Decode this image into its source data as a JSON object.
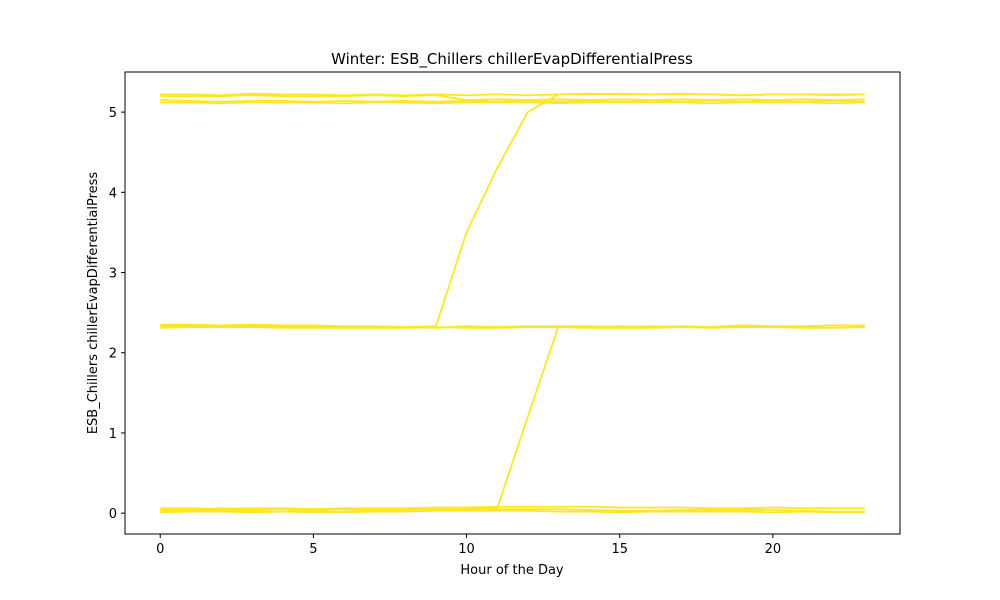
{
  "chart_data": {
    "type": "line",
    "title": "Winter: ESB_Chillers chillerEvapDifferentialPress",
    "xlabel": "Hour of the Day",
    "ylabel": "ESB_Chillers chillerEvapDifferentialPress",
    "xlim": [
      -1.15,
      24.15
    ],
    "ylim": [
      -0.26,
      5.5
    ],
    "xticks": [
      0,
      5,
      10,
      15,
      20
    ],
    "yticks": [
      0,
      1,
      2,
      3,
      4,
      5
    ],
    "grid": false,
    "line_color": "#fde725",
    "series": [
      {
        "x": [
          0,
          1,
          2,
          3,
          4,
          5,
          6,
          7,
          8,
          9,
          10,
          11,
          12,
          13,
          14,
          15,
          16,
          17,
          18,
          19,
          20,
          21,
          22,
          23
        ],
        "y": [
          5.22,
          5.22,
          5.21,
          5.23,
          5.22,
          5.22,
          5.21,
          5.22,
          5.21,
          5.22,
          5.21,
          5.22,
          5.21,
          5.22,
          5.23,
          5.22,
          5.22,
          5.23,
          5.22,
          5.21,
          5.22,
          5.22,
          5.22,
          5.22
        ]
      },
      {
        "x": [
          0,
          1,
          2,
          3,
          4,
          5,
          6,
          7,
          8,
          9,
          10,
          11,
          12,
          13,
          14,
          15,
          16,
          17,
          18,
          19,
          20,
          21,
          22,
          23
        ],
        "y": [
          5.2,
          5.2,
          5.2,
          5.21,
          5.2,
          5.2,
          5.2,
          5.21,
          5.2,
          5.21,
          5.15,
          5.16,
          5.15,
          5.16,
          5.15,
          5.16,
          5.15,
          5.16,
          5.15,
          5.16,
          5.15,
          5.16,
          5.15,
          5.16
        ]
      },
      {
        "x": [
          0,
          1,
          2,
          3,
          4,
          5,
          6,
          7,
          8,
          9,
          10,
          11,
          12,
          13,
          14,
          15,
          16,
          17,
          18,
          19,
          20,
          21,
          22,
          23
        ],
        "y": [
          5.15,
          5.14,
          5.13,
          5.14,
          5.14,
          5.13,
          5.14,
          5.13,
          5.14,
          5.13,
          5.14,
          5.13,
          5.14,
          5.13,
          5.14,
          5.13,
          5.14,
          5.13,
          5.14,
          5.13,
          5.14,
          5.13,
          5.14,
          5.13
        ]
      },
      {
        "x": [
          0,
          1,
          2,
          3,
          4,
          5,
          6,
          7,
          8,
          9,
          10,
          11,
          12,
          13,
          14,
          15,
          16,
          17,
          18,
          19,
          20,
          21,
          22,
          23
        ],
        "y": [
          5.12,
          5.12,
          5.11,
          5.12,
          5.12,
          5.12,
          5.11,
          5.12,
          5.12,
          5.11,
          5.12,
          5.12,
          5.12,
          5.11,
          5.12,
          5.12,
          5.12,
          5.12,
          5.11,
          5.12,
          5.12,
          5.12,
          5.11,
          5.12
        ]
      },
      {
        "x": [
          0,
          1,
          2,
          3,
          4,
          5,
          6,
          7,
          8,
          9,
          10,
          11,
          12,
          13,
          14,
          15,
          16,
          17,
          18,
          19,
          20,
          21,
          22,
          23
        ],
        "y": [
          2.35,
          2.35,
          2.34,
          2.35,
          2.34,
          2.34,
          2.33,
          2.33,
          2.32,
          2.33,
          3.5,
          4.3,
          5.0,
          5.22,
          5.22,
          5.23,
          5.22,
          5.22,
          5.22,
          5.21,
          5.22,
          5.22,
          5.21,
          5.22
        ]
      },
      {
        "x": [
          0,
          1,
          2,
          3,
          4,
          5,
          6,
          7,
          8,
          9,
          10,
          11,
          12,
          13,
          14,
          15,
          16,
          17,
          18,
          19,
          20,
          21,
          22,
          23
        ],
        "y": [
          2.33,
          2.33,
          2.34,
          2.33,
          2.33,
          2.32,
          2.33,
          2.32,
          2.32,
          2.31,
          2.33,
          2.32,
          2.33,
          2.33,
          2.32,
          2.33,
          2.32,
          2.33,
          2.32,
          2.34,
          2.33,
          2.33,
          2.34,
          2.34
        ]
      },
      {
        "x": [
          0,
          1,
          2,
          3,
          4,
          5,
          6,
          7,
          8,
          9,
          10,
          11,
          12,
          13,
          14,
          15,
          16,
          17,
          18,
          19,
          20,
          21,
          22,
          23
        ],
        "y": [
          2.31,
          2.32,
          2.32,
          2.32,
          2.31,
          2.31,
          2.31,
          2.31,
          2.31,
          2.32,
          2.31,
          2.31,
          2.32,
          2.32,
          2.31,
          2.31,
          2.31,
          2.32,
          2.31,
          2.32,
          2.32,
          2.31,
          2.31,
          2.32
        ]
      },
      {
        "x": [
          0,
          1,
          2,
          3,
          4,
          5,
          6,
          7,
          8,
          9,
          10,
          11,
          12,
          13,
          14,
          15,
          16,
          17,
          18,
          19,
          20,
          21,
          22,
          23
        ],
        "y": [
          0.05,
          0.04,
          0.06,
          0.05,
          0.05,
          0.03,
          0.05,
          0.04,
          0.05,
          0.05,
          0.06,
          0.06,
          1.2,
          2.33,
          2.33,
          2.32,
          2.33,
          2.32,
          2.32,
          2.33,
          2.33,
          2.33,
          2.34,
          2.34
        ]
      },
      {
        "x": [
          0,
          1,
          2,
          3,
          4,
          5,
          6,
          7,
          8,
          9,
          10,
          11,
          12,
          13,
          14,
          15,
          16,
          17,
          18,
          19,
          20,
          21,
          22,
          23
        ],
        "y": [
          0.06,
          0.06,
          0.05,
          0.06,
          0.06,
          0.05,
          0.06,
          0.06,
          0.06,
          0.07,
          0.07,
          0.08,
          0.08,
          0.08,
          0.08,
          0.07,
          0.07,
          0.07,
          0.06,
          0.06,
          0.07,
          0.06,
          0.06,
          0.06
        ]
      },
      {
        "x": [
          0,
          1,
          2,
          3,
          4,
          5,
          6,
          7,
          8,
          9,
          10,
          11,
          12,
          13,
          14,
          15,
          16,
          17,
          18,
          19,
          20,
          21,
          22,
          23
        ],
        "y": [
          0.03,
          0.03,
          0.04,
          0.03,
          0.02,
          0.01,
          0.02,
          0.03,
          0.03,
          0.04,
          0.04,
          0.05,
          0.05,
          0.05,
          0.04,
          0.03,
          0.03,
          0.04,
          0.04,
          0.04,
          0.04,
          0.03,
          0.02,
          0.02
        ]
      },
      {
        "x": [
          0,
          1,
          2,
          3,
          4,
          5,
          6,
          7,
          8,
          9,
          10,
          11,
          12,
          13,
          14,
          15,
          16,
          17,
          18,
          19,
          20,
          21,
          22,
          23
        ],
        "y": [
          0.01,
          0.02,
          0.02,
          0.01,
          0.02,
          0.02,
          0.01,
          0.02,
          0.02,
          0.03,
          0.03,
          0.03,
          0.03,
          0.02,
          0.02,
          0.01,
          0.02,
          0.02,
          0.02,
          0.02,
          0.01,
          0.02,
          0.01,
          0.01
        ]
      }
    ]
  }
}
